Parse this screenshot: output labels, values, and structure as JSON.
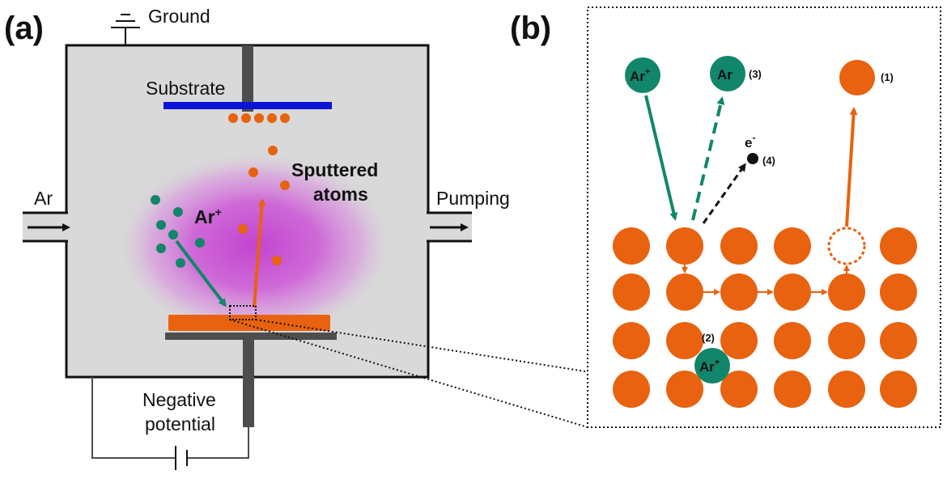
{
  "panel_a": {
    "label": "(a)",
    "ground": "Ground",
    "substrate": "Substrate",
    "ar_inlet": "Ar",
    "pumping": "Pumping",
    "ar_ion": "Ar",
    "ar_ion_sup": "+",
    "sputtered_line1": "Sputtered",
    "sputtered_line2": "atoms",
    "negative_line1": "Negative",
    "negative_line2": "potential"
  },
  "panel_b": {
    "label": "(b)",
    "ar_ion_top": "Ar",
    "ar_ion_top_sup": "+",
    "ar_neutral": "Ar",
    "marker_1": "(1)",
    "marker_2": "(2)",
    "marker_3": "(3)",
    "marker_4": "(4)",
    "electron": "e",
    "electron_sup": "-",
    "ar_ion_embedded": "Ar",
    "ar_ion_embedded_sup": "+"
  },
  "colors": {
    "orange": "#e8620f",
    "teal": "#12866a",
    "substrate_blue": "#0a14d6",
    "chamber_gray": "#d9d9d9",
    "plasma_magenta": "#c840d0",
    "electrode_dark": "#4d4d4d"
  }
}
